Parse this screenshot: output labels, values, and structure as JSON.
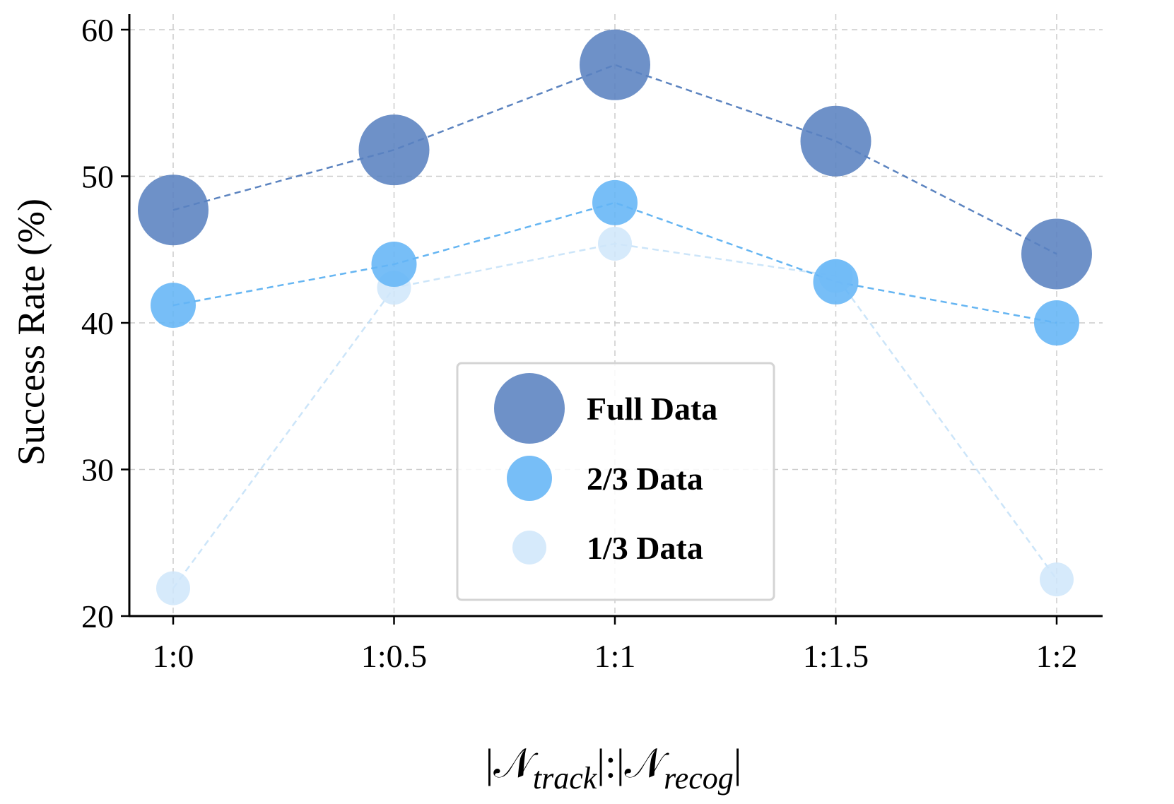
{
  "chart_data": {
    "type": "scatter",
    "categories": [
      "1:0",
      "1:0.5",
      "1:1",
      "1:1.5",
      "1:2"
    ],
    "ylabel": "Success Rate (%)",
    "xlabel": {
      "symbol": "𝒩",
      "sub1": "track",
      "sub2": "recog"
    },
    "ylim": [
      20,
      61
    ],
    "yticks": [
      "20",
      "30",
      "40",
      "50",
      "60"
    ],
    "grid": true,
    "legend_position": "center-bottom",
    "series": [
      {
        "name": "Full Data",
        "color": "#5a82c0",
        "values": [
          47.7,
          51.8,
          57.6,
          52.4,
          44.7
        ]
      },
      {
        "name": "2/3 Data",
        "color": "#64b5f6",
        "values": [
          41.2,
          44.0,
          48.2,
          42.8,
          40.0
        ]
      },
      {
        "name": "1/3 Data",
        "color": "#cfe6fa",
        "values": [
          21.9,
          42.4,
          45.4,
          43.2,
          22.5
        ]
      }
    ]
  }
}
